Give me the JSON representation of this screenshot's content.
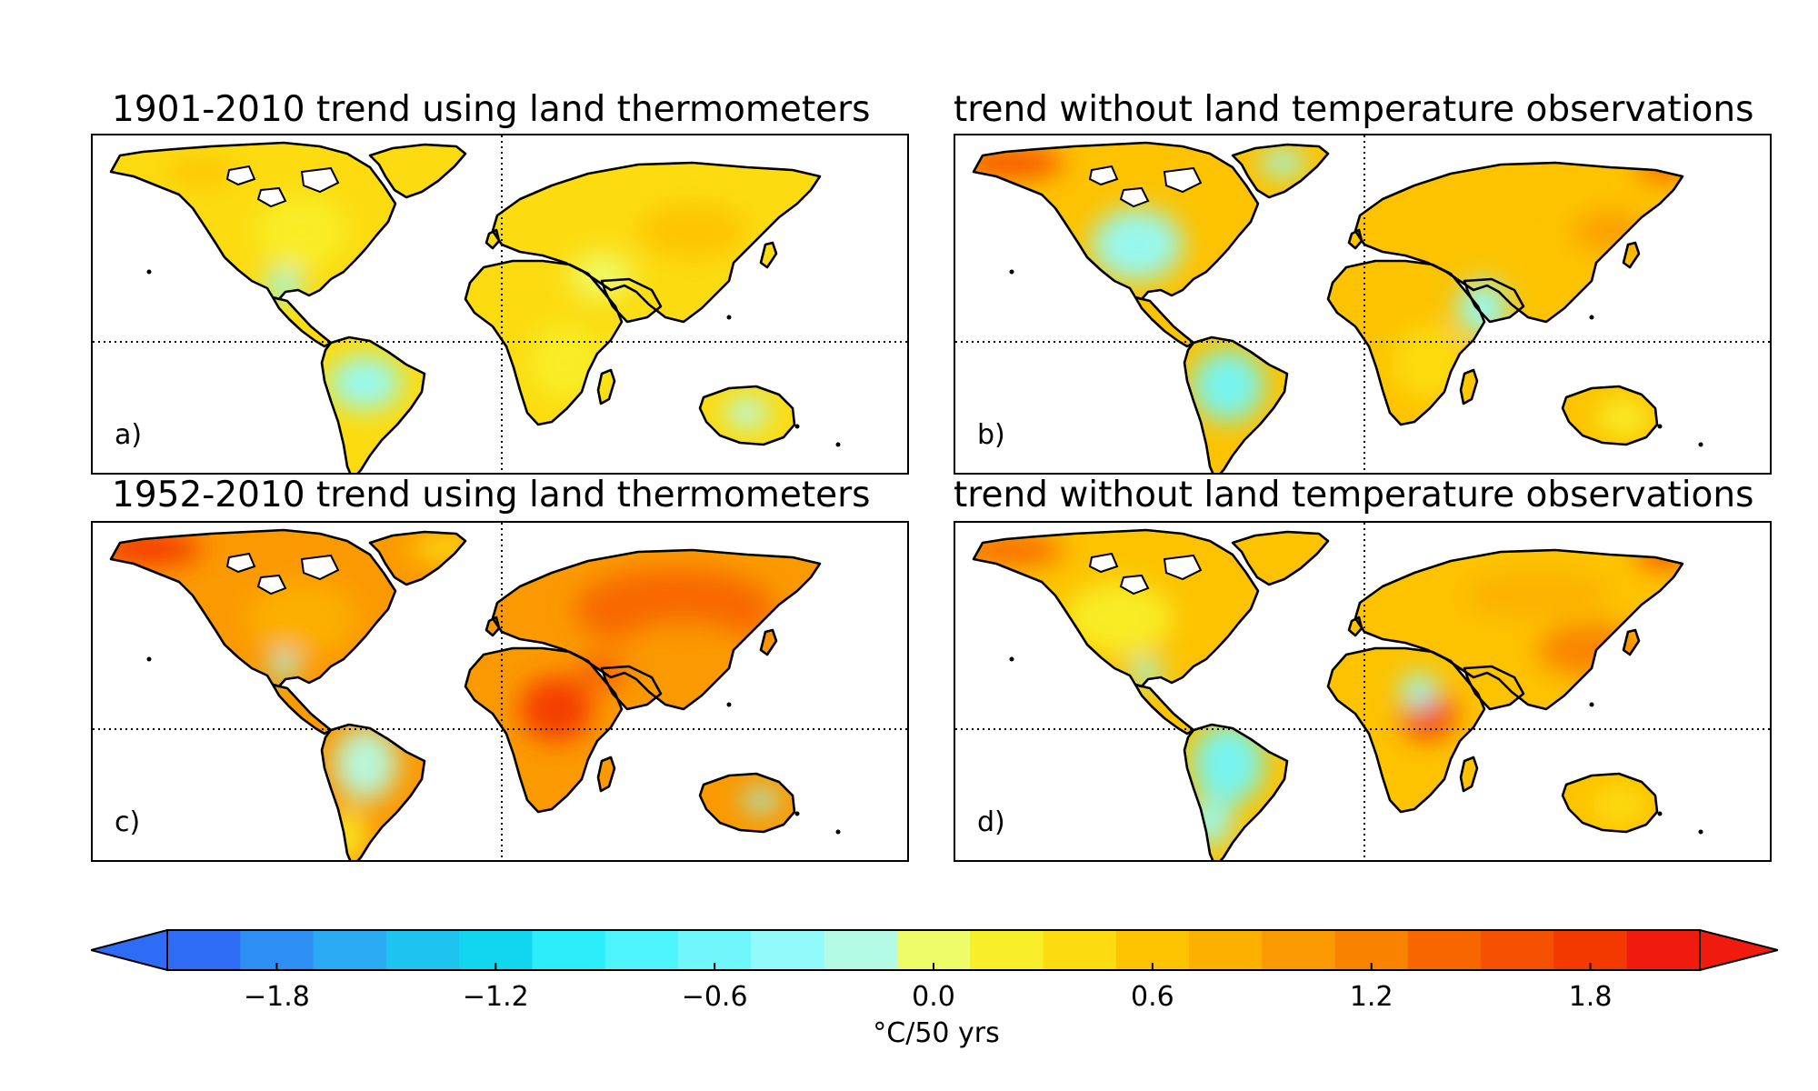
{
  "panels": [
    {
      "id": "a",
      "title": "1901-2010 trend using land thermometers",
      "label": "a)"
    },
    {
      "id": "b",
      "title": "trend without land temperature observations",
      "label": "b)"
    },
    {
      "id": "c",
      "title": "1952-2010 trend using land thermometers",
      "label": "c)"
    },
    {
      "id": "d",
      "title": "trend without land temperature observations",
      "label": "d)"
    }
  ],
  "colorbar": {
    "range": [
      -2.1,
      2.1
    ],
    "step": 0.2,
    "extend": "both",
    "ticks": [
      "−1.8",
      "−1.2",
      "−0.6",
      "0.0",
      "0.6",
      "1.2",
      "1.8"
    ],
    "tick_values": [
      -1.8,
      -1.2,
      -0.6,
      0.0,
      0.6,
      1.2,
      1.8
    ],
    "unit": "°C/50 yrs",
    "under_color": "#2f6cf5",
    "over_color": "#f11a0f",
    "colors": [
      "#2f6cf5",
      "#2d8ef4",
      "#2aaaf2",
      "#1fc3f0",
      "#12d6f0",
      "#2ceefa",
      "#4ef4fb",
      "#70f7fc",
      "#92fafa",
      "#b4fbe5",
      "#eefc6a",
      "#f8ee29",
      "#fcdc11",
      "#fdc300",
      "#fcb000",
      "#fb9a00",
      "#f98200",
      "#f86600",
      "#f54f00",
      "#f33800",
      "#f11a0f"
    ]
  },
  "grid_lines": {
    "longitude": "0°",
    "latitude": "0°"
  }
}
